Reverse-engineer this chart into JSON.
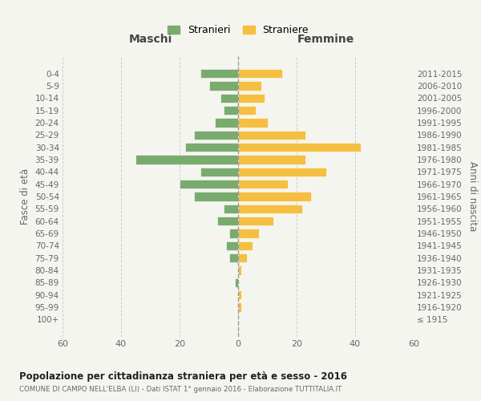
{
  "age_groups": [
    "0-4",
    "5-9",
    "10-14",
    "15-19",
    "20-24",
    "25-29",
    "30-34",
    "35-39",
    "40-44",
    "45-49",
    "50-54",
    "55-59",
    "60-64",
    "65-69",
    "70-74",
    "75-79",
    "80-84",
    "85-89",
    "90-94",
    "95-99",
    "100+"
  ],
  "birth_years": [
    "2011-2015",
    "2006-2010",
    "2001-2005",
    "1996-2000",
    "1991-1995",
    "1986-1990",
    "1981-1985",
    "1976-1980",
    "1971-1975",
    "1966-1970",
    "1961-1965",
    "1956-1960",
    "1951-1955",
    "1946-1950",
    "1941-1945",
    "1936-1940",
    "1931-1935",
    "1926-1930",
    "1921-1925",
    "1916-1920",
    "≤ 1915"
  ],
  "maschi": [
    13,
    10,
    6,
    5,
    8,
    15,
    18,
    35,
    13,
    20,
    15,
    5,
    7,
    3,
    4,
    3,
    0,
    1,
    0,
    0,
    0
  ],
  "femmine": [
    15,
    8,
    9,
    6,
    10,
    23,
    42,
    23,
    30,
    17,
    25,
    22,
    12,
    7,
    5,
    3,
    1,
    0,
    1,
    1,
    0
  ],
  "male_color": "#7aab6e",
  "female_color": "#f5bf42",
  "background_color": "#f5f5f0",
  "grid_color": "#cccccc",
  "title": "Popolazione per cittadinanza straniera per età e sesso - 2016",
  "subtitle": "COMUNE DI CAMPO NELL'ELBA (LI) - Dati ISTAT 1° gennaio 2016 - Elaborazione TUTTITALIA.IT",
  "xlabel_left": "Maschi",
  "xlabel_right": "Femmine",
  "ylabel_left": "Fasce di età",
  "ylabel_right": "Anni di nascita",
  "legend_male": "Stranieri",
  "legend_female": "Straniere",
  "xlim": 60
}
